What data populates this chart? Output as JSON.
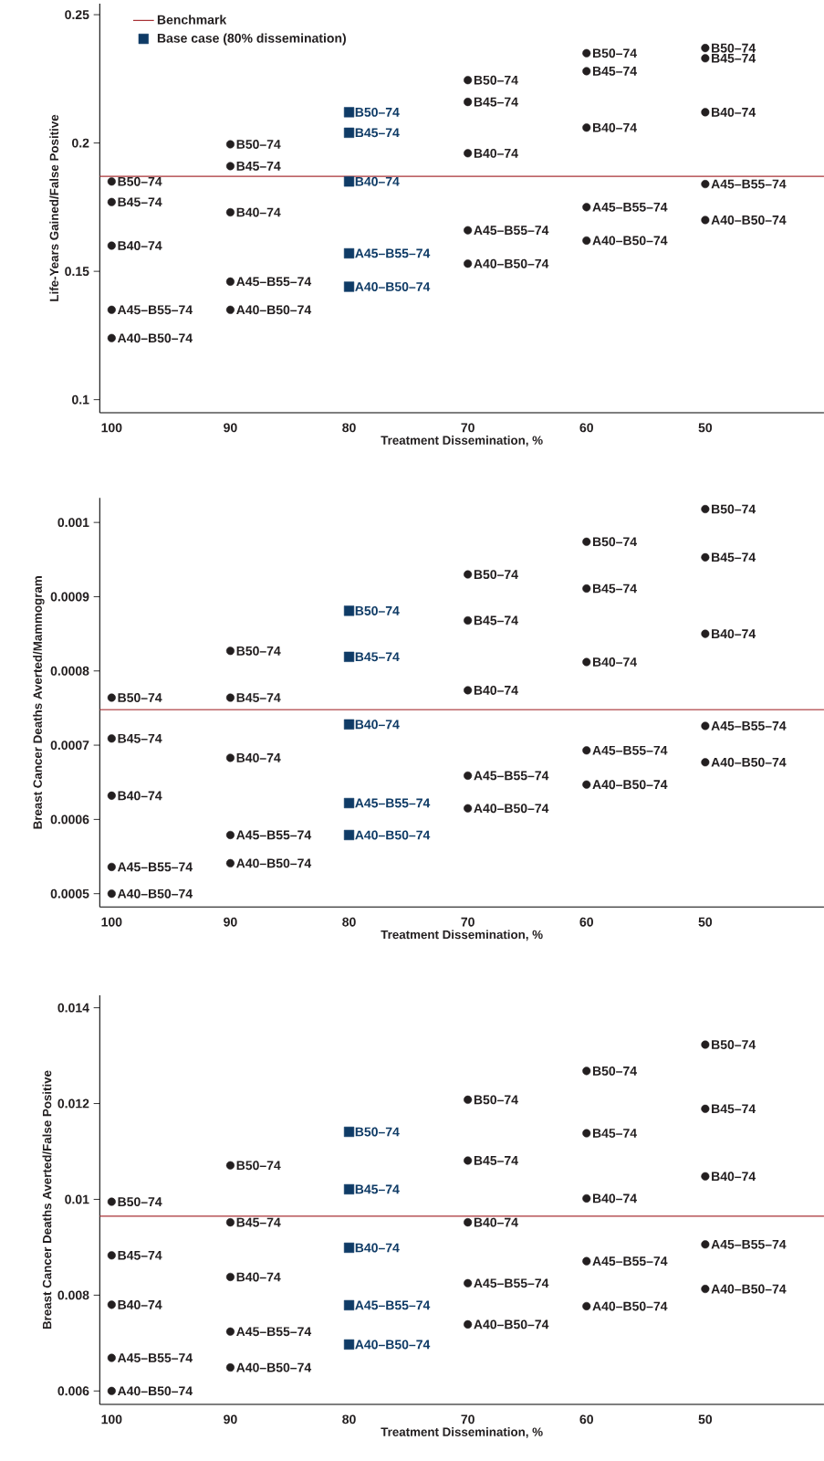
{
  "chart_data": [
    {
      "type": "scatter",
      "xlabel": "Treatment Dissemination, %",
      "ylabel": "Life-Years Gained/False Positive",
      "xlim": [
        101,
        40
      ],
      "xticks": [
        100,
        90,
        80,
        70,
        60,
        50
      ],
      "ylim": [
        0.0949,
        0.2543
      ],
      "yticks": [
        0.1,
        0.15,
        0.2,
        0.25
      ],
      "legend": "top left",
      "series": [
        {
          "color": "#231f20",
          "marker": "circle",
          "x": [
            100,
            100,
            100,
            100,
            100,
            90,
            90,
            90,
            90,
            90,
            70,
            70,
            70,
            70,
            70,
            60,
            60,
            60,
            60,
            60,
            50,
            50,
            50,
            50,
            50
          ],
          "values": [
            0.185,
            0.177,
            0.16,
            0.135,
            0.124,
            0.1995,
            0.191,
            0.173,
            0.146,
            0.135,
            0.2245,
            0.216,
            0.196,
            0.166,
            0.153,
            0.235,
            0.228,
            0.206,
            0.175,
            0.162,
            0.237,
            0.233,
            0.212,
            0.184,
            0.17
          ]
        },
        {
          "name": "Base case (80% dissemination)",
          "color": "#0f3b66",
          "marker": "square",
          "x": [
            80,
            80,
            80,
            80,
            80
          ],
          "values": [
            0.212,
            0.204,
            0.185,
            0.157,
            0.144
          ]
        }
      ],
      "ref_lines": [
        {
          "axis": "y",
          "value": 0.187,
          "label": "Benchmark",
          "color": "#a83236"
        }
      ],
      "annotations": [
        {
          "text": "B50–74",
          "x": 100,
          "y": 0.185
        },
        {
          "text": "B45–74",
          "x": 100,
          "y": 0.177
        },
        {
          "text": "B40–74",
          "x": 100,
          "y": 0.16
        },
        {
          "text": "A45–B55–74",
          "x": 100,
          "y": 0.135
        },
        {
          "text": "A40–B50–74",
          "x": 100,
          "y": 0.124
        },
        {
          "text": "B50–74",
          "x": 90,
          "y": 0.1995
        },
        {
          "text": "B45–74",
          "x": 90,
          "y": 0.191
        },
        {
          "text": "B40–74",
          "x": 90,
          "y": 0.173
        },
        {
          "text": "A45–B55–74",
          "x": 90,
          "y": 0.146
        },
        {
          "text": "A40–B50–74",
          "x": 90,
          "y": 0.135
        },
        {
          "text": "B50–74",
          "x": 80,
          "y": 0.212
        },
        {
          "text": "B45–74",
          "x": 80,
          "y": 0.204
        },
        {
          "text": "B40–74",
          "x": 80,
          "y": 0.185
        },
        {
          "text": "A45–B55–74",
          "x": 80,
          "y": 0.157
        },
        {
          "text": "A40–B50–74",
          "x": 80,
          "y": 0.144
        },
        {
          "text": "B50–74",
          "x": 70,
          "y": 0.2245
        },
        {
          "text": "B45–74",
          "x": 70,
          "y": 0.216
        },
        {
          "text": "B40–74",
          "x": 70,
          "y": 0.196
        },
        {
          "text": "A45–B55–74",
          "x": 70,
          "y": 0.166
        },
        {
          "text": "A40–B50–74",
          "x": 70,
          "y": 0.153
        },
        {
          "text": "B50–74",
          "x": 60,
          "y": 0.235
        },
        {
          "text": "B45–74",
          "x": 60,
          "y": 0.228
        },
        {
          "text": "B40–74",
          "x": 60,
          "y": 0.206
        },
        {
          "text": "A45–B55–74",
          "x": 60,
          "y": 0.175
        },
        {
          "text": "A40–B50–74",
          "x": 60,
          "y": 0.162
        },
        {
          "text": "B50–74",
          "x": 50,
          "y": 0.237
        },
        {
          "text": "B45–74",
          "x": 50,
          "y": 0.233
        },
        {
          "text": "B40–74",
          "x": 50,
          "y": 0.212
        },
        {
          "text": "A45–B55–74",
          "x": 50,
          "y": 0.184
        },
        {
          "text": "A40–B50–74",
          "x": 50,
          "y": 0.17
        }
      ]
    },
    {
      "type": "scatter",
      "xlabel": "Treatment Dissemination, %",
      "ylabel": "Breast Cancer Deaths Averted/Mammogram",
      "xlim": [
        101,
        40
      ],
      "xticks": [
        100,
        90,
        80,
        70,
        60,
        50
      ],
      "ylim": [
        0.000482,
        0.001033
      ],
      "yticks": [
        0.0005,
        0.0006,
        0.0007,
        0.0008,
        0.0009,
        0.001
      ],
      "series": [
        {
          "color": "#231f20",
          "marker": "circle",
          "x": [
            100,
            100,
            100,
            100,
            100,
            90,
            90,
            90,
            90,
            90,
            70,
            70,
            70,
            70,
            70,
            60,
            60,
            60,
            60,
            60,
            50,
            50,
            50,
            50,
            50
          ],
          "values": [
            0.000764,
            0.000709,
            0.000632,
            0.000536,
            0.0005,
            0.000827,
            0.000764,
            0.000683,
            0.000579,
            0.000541,
            0.00093,
            0.000868,
            0.000774,
            0.000659,
            0.000615,
            0.000974,
            0.000911,
            0.000812,
            0.000693,
            0.000647,
            0.001018,
            0.000953,
            0.00085,
            0.000726,
            0.000677
          ]
        },
        {
          "color": "#0f3b66",
          "marker": "square",
          "x": [
            80,
            80,
            80,
            80,
            80
          ],
          "values": [
            0.000881,
            0.000819,
            0.000728,
            0.000622,
            0.000579
          ]
        }
      ],
      "ref_lines": [
        {
          "axis": "y",
          "value": 0.000748,
          "color": "#a83236"
        }
      ],
      "annotations": [
        {
          "text": "B50–74",
          "x": 100,
          "y": 0.000764
        },
        {
          "text": "B45–74",
          "x": 100,
          "y": 0.000709
        },
        {
          "text": "B40–74",
          "x": 100,
          "y": 0.000632
        },
        {
          "text": "A45–B55–74",
          "x": 100,
          "y": 0.000536
        },
        {
          "text": "A40–B50–74",
          "x": 100,
          "y": 0.0005
        },
        {
          "text": "B50–74",
          "x": 90,
          "y": 0.000827
        },
        {
          "text": "B45–74",
          "x": 90,
          "y": 0.000764
        },
        {
          "text": "B40–74",
          "x": 90,
          "y": 0.000683
        },
        {
          "text": "A45–B55–74",
          "x": 90,
          "y": 0.000579
        },
        {
          "text": "A40–B50–74",
          "x": 90,
          "y": 0.000541
        },
        {
          "text": "B50–74",
          "x": 80,
          "y": 0.000881
        },
        {
          "text": "B45–74",
          "x": 80,
          "y": 0.000819
        },
        {
          "text": "B40–74",
          "x": 80,
          "y": 0.000728
        },
        {
          "text": "A45–B55–74",
          "x": 80,
          "y": 0.000622
        },
        {
          "text": "A40–B50–74",
          "x": 80,
          "y": 0.000579
        },
        {
          "text": "B50–74",
          "x": 70,
          "y": 0.00093
        },
        {
          "text": "B45–74",
          "x": 70,
          "y": 0.000868
        },
        {
          "text": "B40–74",
          "x": 70,
          "y": 0.000774
        },
        {
          "text": "A45–B55–74",
          "x": 70,
          "y": 0.000659
        },
        {
          "text": "A40–B50–74",
          "x": 70,
          "y": 0.000615
        },
        {
          "text": "B50–74",
          "x": 60,
          "y": 0.000974
        },
        {
          "text": "B45–74",
          "x": 60,
          "y": 0.000911
        },
        {
          "text": "B40–74",
          "x": 60,
          "y": 0.000812
        },
        {
          "text": "A45–B55–74",
          "x": 60,
          "y": 0.000693
        },
        {
          "text": "A40–B50–74",
          "x": 60,
          "y": 0.000647
        },
        {
          "text": "B50–74",
          "x": 50,
          "y": 0.001018
        },
        {
          "text": "B45–74",
          "x": 50,
          "y": 0.000953
        },
        {
          "text": "B40–74",
          "x": 50,
          "y": 0.00085
        },
        {
          "text": "A45–B55–74",
          "x": 50,
          "y": 0.000726
        },
        {
          "text": "A40–B50–74",
          "x": 50,
          "y": 0.000677
        }
      ]
    },
    {
      "type": "scatter",
      "xlabel": "Treatment Dissemination, %",
      "ylabel": "Breast Cancer Deaths Averted/False Positive",
      "xlim": [
        101,
        40
      ],
      "xticks": [
        100,
        90,
        80,
        70,
        60,
        50
      ],
      "ylim": [
        0.00572,
        0.01426
      ],
      "yticks": [
        0.006,
        0.008,
        0.01,
        0.012,
        0.014
      ],
      "series": [
        {
          "color": "#231f20",
          "marker": "circle",
          "x": [
            100,
            100,
            100,
            100,
            100,
            90,
            90,
            90,
            90,
            90,
            70,
            70,
            70,
            70,
            70,
            60,
            60,
            60,
            60,
            60,
            50,
            50,
            50,
            50,
            50
          ],
          "values": [
            0.00995,
            0.00883,
            0.0078,
            0.00669,
            0.006,
            0.01071,
            0.00952,
            0.00838,
            0.00724,
            0.00649,
            0.01208,
            0.01081,
            0.00952,
            0.00825,
            0.00739,
            0.01268,
            0.01138,
            0.01002,
            0.00871,
            0.00777,
            0.01323,
            0.01189,
            0.01048,
            0.00906,
            0.00813
          ]
        },
        {
          "color": "#0f3b66",
          "marker": "square",
          "x": [
            80,
            80,
            80,
            80,
            80
          ],
          "values": [
            0.01141,
            0.01021,
            0.00899,
            0.00779,
            0.00697
          ]
        }
      ],
      "ref_lines": [
        {
          "axis": "y",
          "value": 0.00965,
          "color": "#a83236"
        }
      ],
      "annotations": [
        {
          "text": "B50–74",
          "x": 100,
          "y": 0.00995
        },
        {
          "text": "B45–74",
          "x": 100,
          "y": 0.00883
        },
        {
          "text": "B40–74",
          "x": 100,
          "y": 0.0078
        },
        {
          "text": "A45–B55–74",
          "x": 100,
          "y": 0.00669
        },
        {
          "text": "A40–B50–74",
          "x": 100,
          "y": 0.006
        },
        {
          "text": "B50–74",
          "x": 90,
          "y": 0.01071
        },
        {
          "text": "B45–74",
          "x": 90,
          "y": 0.00952
        },
        {
          "text": "B40–74",
          "x": 90,
          "y": 0.00838
        },
        {
          "text": "A45–B55–74",
          "x": 90,
          "y": 0.00724
        },
        {
          "text": "A40–B50–74",
          "x": 90,
          "y": 0.00649
        },
        {
          "text": "B50–74",
          "x": 80,
          "y": 0.01141
        },
        {
          "text": "B45–74",
          "x": 80,
          "y": 0.01021
        },
        {
          "text": "B40–74",
          "x": 80,
          "y": 0.00899
        },
        {
          "text": "A45–B55–74",
          "x": 80,
          "y": 0.00779
        },
        {
          "text": "A40–B50–74",
          "x": 80,
          "y": 0.00697
        },
        {
          "text": "B50–74",
          "x": 70,
          "y": 0.01208
        },
        {
          "text": "B45–74",
          "x": 70,
          "y": 0.01081
        },
        {
          "text": "B40–74",
          "x": 70,
          "y": 0.00952
        },
        {
          "text": "A45–B55–74",
          "x": 70,
          "y": 0.00825
        },
        {
          "text": "A40–B50–74",
          "x": 70,
          "y": 0.00739
        },
        {
          "text": "B50–74",
          "x": 60,
          "y": 0.01268
        },
        {
          "text": "B45–74",
          "x": 60,
          "y": 0.01138
        },
        {
          "text": "B40–74",
          "x": 60,
          "y": 0.01002
        },
        {
          "text": "A45–B55–74",
          "x": 60,
          "y": 0.00871
        },
        {
          "text": "A40–B50–74",
          "x": 60,
          "y": 0.00777
        },
        {
          "text": "B50–74",
          "x": 50,
          "y": 0.01323
        },
        {
          "text": "B45–74",
          "x": 50,
          "y": 0.01189
        },
        {
          "text": "B40–74",
          "x": 50,
          "y": 0.01048
        },
        {
          "text": "A45–B55–74",
          "x": 50,
          "y": 0.00906
        },
        {
          "text": "A40–B50–74",
          "x": 50,
          "y": 0.00813
        }
      ]
    }
  ]
}
